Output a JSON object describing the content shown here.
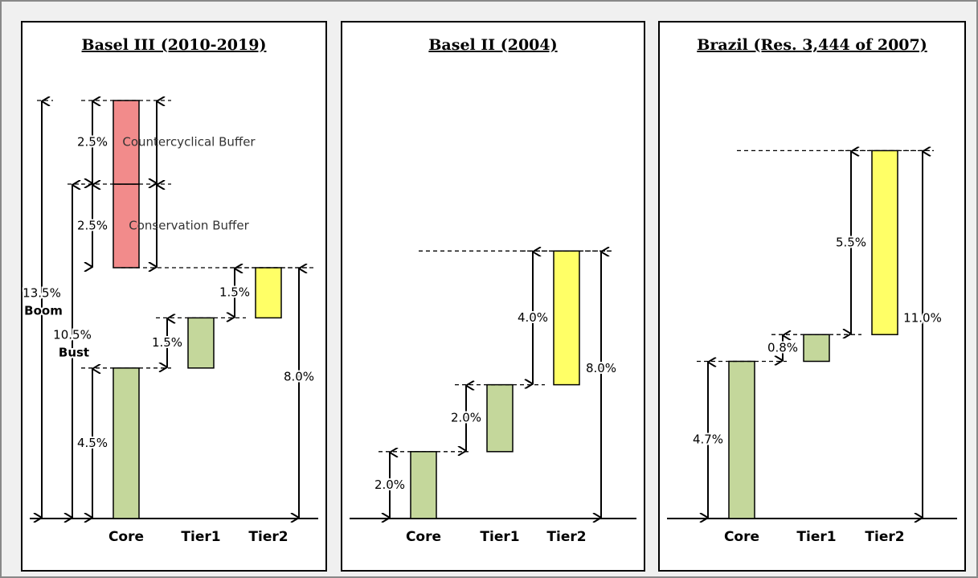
{
  "chart_data": [
    {
      "type": "waterfall",
      "title": "Basel III (2010-2019)",
      "categories": [
        "Core",
        "Tier1",
        "Tier2"
      ],
      "segments": [
        {
          "column": 0,
          "value": 4.5,
          "value_label": "4.5%",
          "color": "#c4d79b"
        },
        {
          "column": 1,
          "value": 1.5,
          "value_label": "1.5%",
          "color": "#c4d79b"
        },
        {
          "column": 2,
          "value": 1.5,
          "value_label": "1.5%",
          "color": "#ffff66"
        },
        {
          "column": 0,
          "value": 2.5,
          "value_label": "2.5%",
          "color": "#f28b8b",
          "name": "Conservation Buffer"
        },
        {
          "column": 0,
          "value": 2.5,
          "value_label": "2.5%",
          "color": "#f28b8b",
          "name": "Countercyclical Buffer"
        }
      ],
      "totals": [
        {
          "label": "13.5%",
          "note": "Boom"
        },
        {
          "label": "10.5%",
          "note": "Bust"
        },
        {
          "label": "8.0%"
        }
      ]
    },
    {
      "type": "waterfall",
      "title": "Basel II (2004)",
      "categories": [
        "Core",
        "Tier1",
        "Tier2"
      ],
      "segments": [
        {
          "column": 0,
          "value": 2.0,
          "value_label": "2.0%",
          "color": "#c4d79b"
        },
        {
          "column": 1,
          "value": 2.0,
          "value_label": "2.0%",
          "color": "#c4d79b"
        },
        {
          "column": 2,
          "value": 4.0,
          "value_label": "4.0%",
          "color": "#ffff66"
        }
      ],
      "totals": [
        {
          "label": "8.0%"
        }
      ]
    },
    {
      "type": "waterfall",
      "title": "Brazil (Res. 3,444 of 2007)",
      "categories": [
        "Core",
        "Tier1",
        "Tier2"
      ],
      "segments": [
        {
          "column": 0,
          "value": 4.7,
          "value_label": "4.7%",
          "color": "#c4d79b"
        },
        {
          "column": 1,
          "value": 0.8,
          "value_label": "0.8%",
          "color": "#c4d79b"
        },
        {
          "column": 2,
          "value": 5.5,
          "value_label": "5.5%",
          "color": "#ffff66"
        }
      ],
      "totals": [
        {
          "label": "11.0%"
        }
      ]
    }
  ]
}
